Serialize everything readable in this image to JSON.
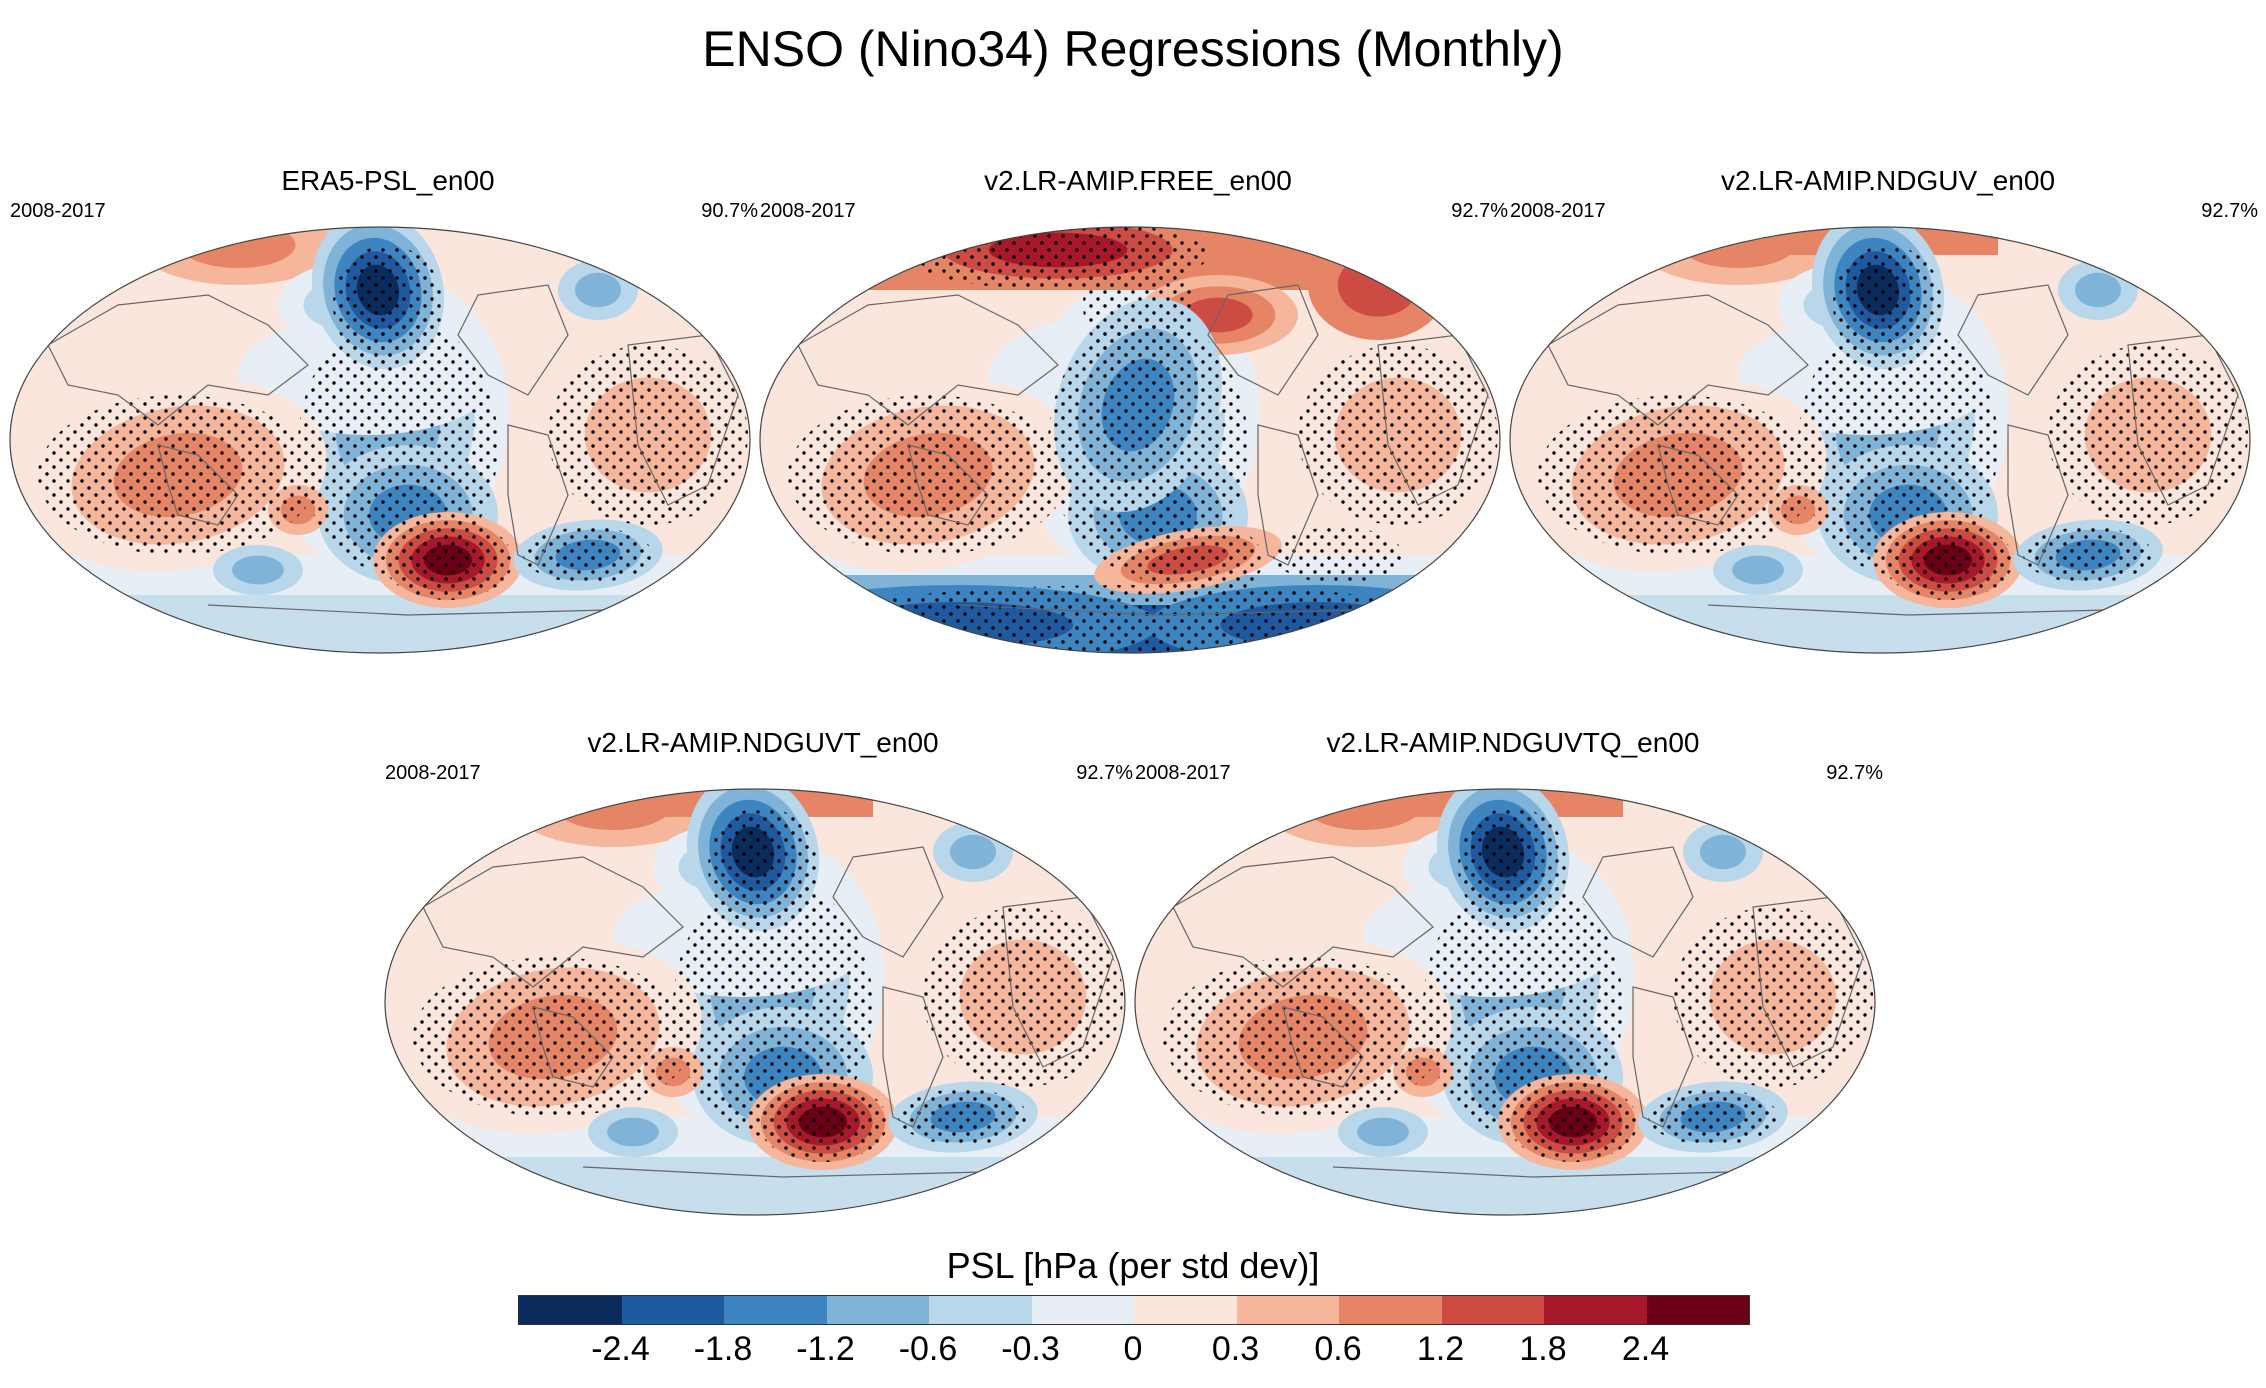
{
  "title": "ENSO (Nino34) Regressions (Monthly)",
  "panels": [
    {
      "name": "ERA5-PSL_en00",
      "period": "2008-2017",
      "pct": "90.7%",
      "variant": "era5"
    },
    {
      "name": "v2.LR-AMIP.FREE_en00",
      "period": "2008-2017",
      "pct": "92.7%",
      "variant": "free"
    },
    {
      "name": "v2.LR-AMIP.NDGUV_en00",
      "period": "2008-2017",
      "pct": "92.7%",
      "variant": "nudged"
    },
    {
      "name": "v2.LR-AMIP.NDGUVT_en00",
      "period": "2008-2017",
      "pct": "92.7%",
      "variant": "nudged"
    },
    {
      "name": "v2.LR-AMIP.NDGUVTQ_en00",
      "period": "2008-2017",
      "pct": "92.7%",
      "variant": "nudged"
    }
  ],
  "colorbar": {
    "title": "PSL [hPa (per std dev)]",
    "labels": [
      "-2.4",
      "-1.8",
      "-1.2",
      "-0.6",
      "-0.3",
      "0",
      "0.3",
      "0.6",
      "1.2",
      "1.8",
      "2.4"
    ],
    "colors": [
      "#0b2b5c",
      "#1f5aa0",
      "#3c85c0",
      "#7fb3d8",
      "#b9d7ea",
      "#e7eef6",
      "#fbe6de",
      "#f5b69b",
      "#e68466",
      "#cc4c44",
      "#a8182b",
      "#690016"
    ]
  }
}
